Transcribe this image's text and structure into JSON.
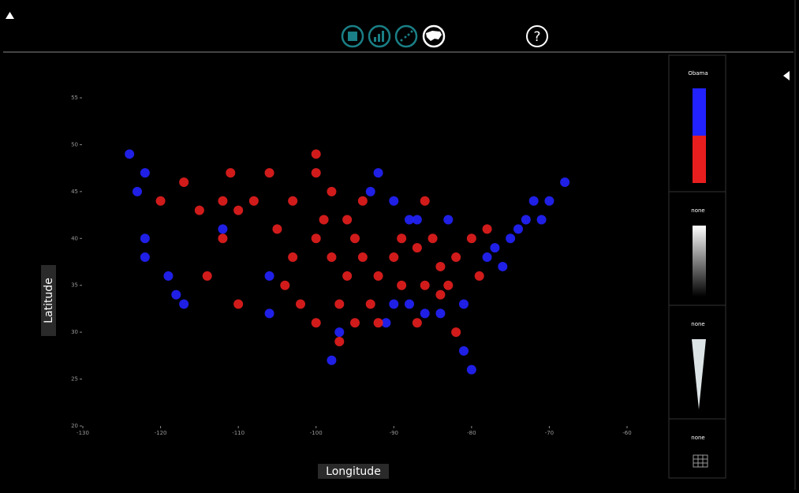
{
  "chart_data": {
    "type": "scatter",
    "x_label": "Longitude",
    "y_label": "Latitude",
    "xlim": [
      -130,
      -60
    ],
    "ylim": [
      20,
      55
    ],
    "xticks": [
      -130,
      -120,
      -110,
      -100,
      -90,
      -80,
      -70,
      -60
    ],
    "yticks": [
      20,
      25,
      30,
      35,
      40,
      45,
      50,
      55
    ],
    "series": [
      {
        "color": "#2222ff",
        "x": [
          -122,
          -123,
          -122,
          -118,
          -117,
          -122,
          -124,
          -74,
          -73,
          -71,
          -75,
          -77,
          -72,
          -70,
          -68,
          -88,
          -87,
          -83,
          -93,
          -90,
          -92,
          -88,
          -86,
          -84,
          -81,
          -90,
          -91,
          -80,
          -81,
          -98,
          -106,
          -106,
          -97,
          -76,
          -78,
          -112,
          -119
        ],
        "y": [
          47,
          45,
          38,
          34,
          33,
          40,
          49,
          41,
          42,
          42,
          40,
          39,
          44,
          44,
          46,
          42,
          42,
          42,
          45,
          44,
          47,
          33,
          32,
          32,
          33,
          33,
          31,
          26,
          28,
          27,
          32,
          36,
          30,
          37,
          38,
          41,
          36
        ]
      },
      {
        "color": "#e81e1e",
        "x": [
          -112,
          -110,
          -108,
          -105,
          -103,
          -100,
          -98,
          -100,
          -98,
          -96,
          -97,
          -100,
          -102,
          -95,
          -93,
          -92,
          -90,
          -87,
          -85,
          -84,
          -86,
          -82,
          -80,
          -78,
          -83,
          -79,
          -84,
          -87,
          -95,
          -94,
          -112,
          -115,
          -117,
          -120,
          -114,
          -110,
          -103,
          -106,
          -111,
          -96,
          -99,
          -89,
          -92,
          -82,
          -86,
          -104,
          -97,
          -89,
          -94,
          -100
        ],
        "y": [
          44,
          43,
          44,
          41,
          44,
          47,
          45,
          40,
          38,
          36,
          33,
          31,
          33,
          31,
          33,
          36,
          38,
          39,
          40,
          37,
          35,
          38,
          40,
          41,
          35,
          36,
          34,
          31,
          40,
          38,
          40,
          43,
          46,
          44,
          36,
          33,
          38,
          47,
          47,
          42,
          42,
          35,
          31,
          30,
          44,
          35,
          29,
          40,
          44,
          49
        ]
      }
    ]
  },
  "toolbar": {
    "help": "?"
  },
  "legend_panels": [
    {
      "label": "Obama"
    },
    {
      "label": "none"
    },
    {
      "label": "none"
    },
    {
      "label": "none"
    }
  ]
}
